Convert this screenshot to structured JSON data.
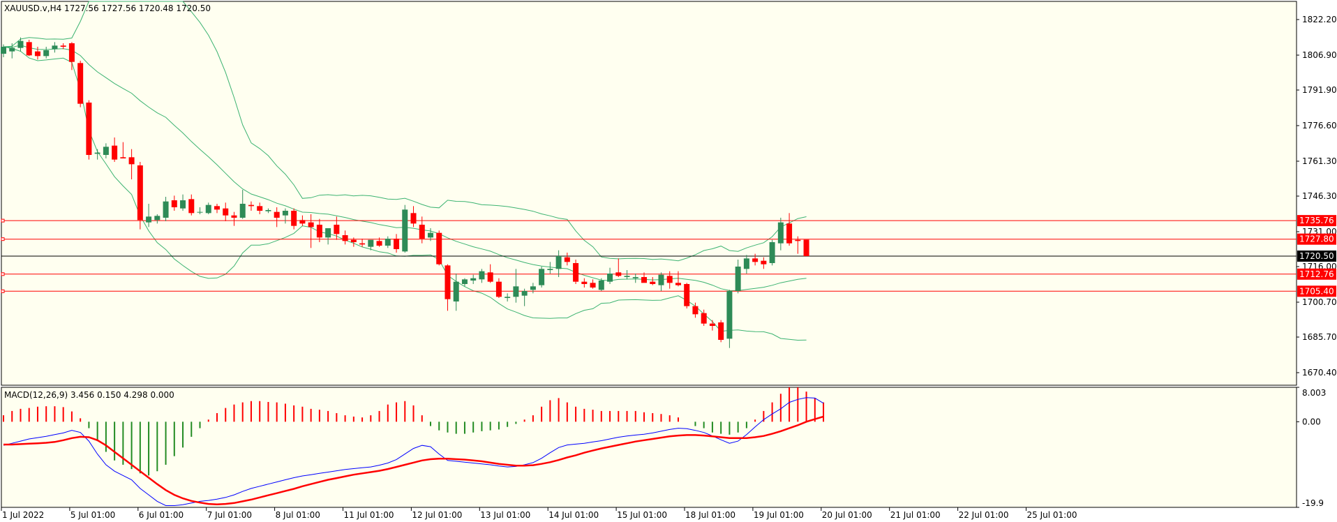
{
  "header": {
    "symbol_line": "XAUUSD.v,H4  1727.56 1727.56 1720.48 1720.50",
    "macd_line": "MACD(12,26,9) 3.456 0.150 4.298 0.000"
  },
  "colors": {
    "background": "#fffff0",
    "frame": "#000000",
    "bull_candle": "#2e8b57",
    "bear_candle": "#ff0000",
    "bands": "#3cb371",
    "level_line": "#ff0000",
    "current_price": "#000000",
    "macd_hist_up": "#ff0000",
    "macd_hist_down": "#228b22",
    "macd_main": "#0000ff",
    "macd_signal": "#ff0000"
  },
  "price_axis": {
    "ticks": [
      "1822.20",
      "1806.90",
      "1791.90",
      "1776.60",
      "1761.30",
      "1746.30",
      "1731.00",
      "1716.00",
      "1700.70",
      "1685.70",
      "1670.40"
    ]
  },
  "macd_axis": {
    "ticks": [
      "8.003",
      "0.00",
      "-19.9"
    ]
  },
  "time_axis": {
    "labels": [
      "1 Jul 2022",
      "5 Jul 01:00",
      "6 Jul 01:00",
      "7 Jul 01:00",
      "8 Jul 01:00",
      "11 Jul 01:00",
      "12 Jul 01:00",
      "13 Jul 01:00",
      "14 Jul 01:00",
      "15 Jul 01:00",
      "18 Jul 01:00",
      "19 Jul 01:00",
      "20 Jul 01:00",
      "21 Jul 01:00",
      "22 Jul 01:00",
      "25 Jul 01:00"
    ]
  },
  "level_tags": {
    "l1735": "1735.76",
    "l1727": "1727.80",
    "current": "1720.50",
    "l1712": "1712.76",
    "l1705": "1705.40"
  },
  "chart_data": [
    {
      "type": "candlestick",
      "symbol": "XAUUSD.v",
      "timeframe": "H4",
      "ylim": [
        1665,
        1830
      ],
      "last_ohlc": [
        1727.56,
        1727.56,
        1720.48,
        1720.5
      ],
      "horizontal_levels": [
        1735.76,
        1727.8,
        1712.76,
        1705.4
      ],
      "current_price": 1720.5,
      "candles": [
        {
          "o": 1807.5,
          "h": 1811.5,
          "l": 1806.0,
          "c": 1810.5
        },
        {
          "o": 1808.5,
          "h": 1812.0,
          "l": 1805.5,
          "c": 1810.0
        },
        {
          "o": 1810.0,
          "h": 1814.5,
          "l": 1808.5,
          "c": 1813.0
        },
        {
          "o": 1812.5,
          "h": 1813.5,
          "l": 1806.5,
          "c": 1806.8
        },
        {
          "o": 1808.5,
          "h": 1810.5,
          "l": 1805.0,
          "c": 1806.5
        },
        {
          "o": 1806.5,
          "h": 1810.5,
          "l": 1805.5,
          "c": 1809.0
        },
        {
          "o": 1809.5,
          "h": 1812.5,
          "l": 1808.0,
          "c": 1811.0
        },
        {
          "o": 1811.0,
          "h": 1812.0,
          "l": 1809.5,
          "c": 1810.5
        },
        {
          "o": 1812.0,
          "h": 1812.5,
          "l": 1800.5,
          "c": 1804.0
        },
        {
          "o": 1803.5,
          "h": 1804.5,
          "l": 1784.5,
          "c": 1786.0
        },
        {
          "o": 1786.5,
          "h": 1787.5,
          "l": 1762.0,
          "c": 1764.0
        },
        {
          "o": 1764.5,
          "h": 1766.5,
          "l": 1762.0,
          "c": 1765.0
        },
        {
          "o": 1764.0,
          "h": 1769.0,
          "l": 1762.5,
          "c": 1767.5
        },
        {
          "o": 1768.0,
          "h": 1771.5,
          "l": 1761.0,
          "c": 1762.0
        },
        {
          "o": 1763.0,
          "h": 1769.5,
          "l": 1762.5,
          "c": 1762.5
        },
        {
          "o": 1763.0,
          "h": 1766.5,
          "l": 1753.5,
          "c": 1760.0
        },
        {
          "o": 1759.5,
          "h": 1761.0,
          "l": 1732.0,
          "c": 1736.0
        },
        {
          "o": 1735.0,
          "h": 1743.0,
          "l": 1733.0,
          "c": 1737.5
        },
        {
          "o": 1736.0,
          "h": 1738.5,
          "l": 1734.5,
          "c": 1737.8
        },
        {
          "o": 1737.0,
          "h": 1746.0,
          "l": 1735.5,
          "c": 1744.0
        },
        {
          "o": 1744.5,
          "h": 1746.5,
          "l": 1740.0,
          "c": 1741.5
        },
        {
          "o": 1741.0,
          "h": 1747.0,
          "l": 1740.0,
          "c": 1744.5
        },
        {
          "o": 1745.0,
          "h": 1747.0,
          "l": 1738.0,
          "c": 1739.0
        },
        {
          "o": 1739.5,
          "h": 1741.5,
          "l": 1738.5,
          "c": 1739.5
        },
        {
          "o": 1739.0,
          "h": 1743.5,
          "l": 1738.5,
          "c": 1742.5
        },
        {
          "o": 1742.0,
          "h": 1743.0,
          "l": 1739.0,
          "c": 1740.5
        },
        {
          "o": 1741.0,
          "h": 1743.5,
          "l": 1735.5,
          "c": 1738.0
        },
        {
          "o": 1738.0,
          "h": 1739.5,
          "l": 1733.5,
          "c": 1737.0
        },
        {
          "o": 1737.0,
          "h": 1749.0,
          "l": 1736.5,
          "c": 1743.0
        },
        {
          "o": 1742.5,
          "h": 1744.0,
          "l": 1740.0,
          "c": 1742.0
        },
        {
          "o": 1742.0,
          "h": 1743.5,
          "l": 1738.5,
          "c": 1740.0
        },
        {
          "o": 1739.8,
          "h": 1741.0,
          "l": 1739.0,
          "c": 1740.3
        },
        {
          "o": 1739.5,
          "h": 1741.5,
          "l": 1733.0,
          "c": 1737.0
        },
        {
          "o": 1738.0,
          "h": 1741.0,
          "l": 1734.5,
          "c": 1740.0
        },
        {
          "o": 1740.0,
          "h": 1741.0,
          "l": 1732.0,
          "c": 1733.5
        },
        {
          "o": 1736.0,
          "h": 1738.0,
          "l": 1733.5,
          "c": 1734.5
        },
        {
          "o": 1735.0,
          "h": 1738.5,
          "l": 1724.0,
          "c": 1733.0
        },
        {
          "o": 1734.0,
          "h": 1736.5,
          "l": 1726.5,
          "c": 1728.5
        },
        {
          "o": 1728.5,
          "h": 1731.0,
          "l": 1725.5,
          "c": 1732.5
        },
        {
          "o": 1734.0,
          "h": 1737.5,
          "l": 1727.5,
          "c": 1730.0
        },
        {
          "o": 1729.5,
          "h": 1731.5,
          "l": 1725.5,
          "c": 1727.0
        },
        {
          "o": 1727.5,
          "h": 1728.5,
          "l": 1724.5,
          "c": 1726.5
        },
        {
          "o": 1726.0,
          "h": 1728.0,
          "l": 1724.5,
          "c": 1725.5
        },
        {
          "o": 1724.5,
          "h": 1726.5,
          "l": 1723.0,
          "c": 1727.5
        },
        {
          "o": 1727.0,
          "h": 1728.5,
          "l": 1724.5,
          "c": 1725.0
        },
        {
          "o": 1725.0,
          "h": 1729.0,
          "l": 1724.0,
          "c": 1728.0
        },
        {
          "o": 1728.0,
          "h": 1730.0,
          "l": 1722.0,
          "c": 1723.5
        },
        {
          "o": 1722.5,
          "h": 1742.5,
          "l": 1722.0,
          "c": 1740.5
        },
        {
          "o": 1739.0,
          "h": 1742.0,
          "l": 1733.0,
          "c": 1734.5
        },
        {
          "o": 1734.0,
          "h": 1737.5,
          "l": 1726.0,
          "c": 1728.0
        },
        {
          "o": 1728.5,
          "h": 1732.5,
          "l": 1727.0,
          "c": 1730.5
        },
        {
          "o": 1730.5,
          "h": 1731.5,
          "l": 1716.5,
          "c": 1717.0
        },
        {
          "o": 1716.5,
          "h": 1717.0,
          "l": 1697.0,
          "c": 1702.0
        },
        {
          "o": 1701.0,
          "h": 1713.0,
          "l": 1697.0,
          "c": 1709.5
        },
        {
          "o": 1708.5,
          "h": 1711.0,
          "l": 1707.5,
          "c": 1710.5
        },
        {
          "o": 1710.0,
          "h": 1712.5,
          "l": 1708.5,
          "c": 1711.0
        },
        {
          "o": 1710.5,
          "h": 1715.0,
          "l": 1709.0,
          "c": 1714.0
        },
        {
          "o": 1713.5,
          "h": 1717.0,
          "l": 1709.0,
          "c": 1709.5
        },
        {
          "o": 1709.5,
          "h": 1711.0,
          "l": 1702.5,
          "c": 1703.0
        },
        {
          "o": 1702.5,
          "h": 1704.5,
          "l": 1701.0,
          "c": 1703.0
        },
        {
          "o": 1703.0,
          "h": 1715.0,
          "l": 1700.5,
          "c": 1707.5
        },
        {
          "o": 1703.5,
          "h": 1706.5,
          "l": 1699.0,
          "c": 1705.5
        },
        {
          "o": 1706.0,
          "h": 1709.0,
          "l": 1704.5,
          "c": 1707.5
        },
        {
          "o": 1708.0,
          "h": 1716.0,
          "l": 1707.0,
          "c": 1715.0
        },
        {
          "o": 1714.5,
          "h": 1718.0,
          "l": 1713.0,
          "c": 1715.0
        },
        {
          "o": 1715.0,
          "h": 1723.0,
          "l": 1711.5,
          "c": 1720.5
        },
        {
          "o": 1720.0,
          "h": 1722.0,
          "l": 1716.5,
          "c": 1718.0
        },
        {
          "o": 1717.5,
          "h": 1719.0,
          "l": 1708.5,
          "c": 1709.5
        },
        {
          "o": 1709.5,
          "h": 1711.0,
          "l": 1707.0,
          "c": 1708.5
        },
        {
          "o": 1709.0,
          "h": 1710.5,
          "l": 1706.5,
          "c": 1707.0
        },
        {
          "o": 1706.0,
          "h": 1711.0,
          "l": 1705.5,
          "c": 1710.0
        },
        {
          "o": 1709.5,
          "h": 1715.5,
          "l": 1708.5,
          "c": 1713.0
        },
        {
          "o": 1713.5,
          "h": 1719.5,
          "l": 1711.5,
          "c": 1712.0
        },
        {
          "o": 1711.5,
          "h": 1714.5,
          "l": 1710.5,
          "c": 1712.0
        },
        {
          "o": 1711.0,
          "h": 1713.0,
          "l": 1709.0,
          "c": 1711.5
        },
        {
          "o": 1711.5,
          "h": 1713.5,
          "l": 1710.0,
          "c": 1709.0
        },
        {
          "o": 1709.5,
          "h": 1711.5,
          "l": 1708.0,
          "c": 1708.5
        },
        {
          "o": 1708.0,
          "h": 1713.5,
          "l": 1705.5,
          "c": 1712.5
        },
        {
          "o": 1712.0,
          "h": 1714.0,
          "l": 1706.5,
          "c": 1709.0
        },
        {
          "o": 1709.0,
          "h": 1714.0,
          "l": 1707.5,
          "c": 1708.0
        },
        {
          "o": 1708.5,
          "h": 1709.0,
          "l": 1698.0,
          "c": 1699.0
        },
        {
          "o": 1699.0,
          "h": 1700.5,
          "l": 1694.0,
          "c": 1695.5
        },
        {
          "o": 1696.0,
          "h": 1697.5,
          "l": 1690.5,
          "c": 1691.5
        },
        {
          "o": 1691.5,
          "h": 1693.0,
          "l": 1688.5,
          "c": 1690.5
        },
        {
          "o": 1692.0,
          "h": 1693.0,
          "l": 1683.5,
          "c": 1684.5
        },
        {
          "o": 1685.0,
          "h": 1706.0,
          "l": 1681.0,
          "c": 1705.5
        },
        {
          "o": 1705.5,
          "h": 1719.0,
          "l": 1704.5,
          "c": 1716.0
        },
        {
          "o": 1715.0,
          "h": 1721.0,
          "l": 1713.0,
          "c": 1719.5
        },
        {
          "o": 1719.5,
          "h": 1721.5,
          "l": 1716.5,
          "c": 1718.0
        },
        {
          "o": 1718.5,
          "h": 1720.0,
          "l": 1715.0,
          "c": 1717.0
        },
        {
          "o": 1717.5,
          "h": 1727.5,
          "l": 1716.5,
          "c": 1726.5
        },
        {
          "o": 1726.0,
          "h": 1737.0,
          "l": 1723.0,
          "c": 1735.0
        },
        {
          "o": 1734.5,
          "h": 1739.0,
          "l": 1725.0,
          "c": 1726.0
        },
        {
          "o": 1727.5,
          "h": 1729.0,
          "l": 1721.5,
          "c": 1727.0
        },
        {
          "o": 1727.56,
          "h": 1727.56,
          "l": 1720.48,
          "c": 1720.5
        }
      ]
    },
    {
      "type": "macd",
      "title": "MACD(12,26,9) 3.456 0.150 4.298 0.000",
      "ylim": [
        -19.9,
        8.003
      ],
      "histogram": [
        1.5,
        2.5,
        3.0,
        3.2,
        3.5,
        3.6,
        3.6,
        3.4,
        2.4,
        0.8,
        -1.5,
        -4.5,
        -7.0,
        -9.0,
        -10.0,
        -11.0,
        -12.0,
        -12.5,
        -11.5,
        -10.0,
        -8.0,
        -6.0,
        -3.5,
        -1.5,
        0.5,
        2.0,
        3.2,
        4.0,
        4.5,
        4.8,
        4.8,
        4.6,
        4.5,
        4.2,
        3.8,
        3.5,
        3.0,
        2.8,
        2.5,
        2.0,
        1.5,
        1.2,
        1.0,
        1.5,
        2.5,
        4.0,
        4.5,
        4.8,
        3.8,
        1.5,
        -1.0,
        -2.0,
        -2.5,
        -2.8,
        -2.8,
        -2.5,
        -2.2,
        -2.0,
        -1.8,
        -1.2,
        -0.5,
        0.5,
        1.5,
        3.5,
        5.0,
        5.5,
        4.5,
        3.5,
        3.0,
        2.8,
        2.5,
        2.5,
        2.5,
        2.5,
        2.5,
        2.2,
        2.0,
        1.8,
        1.5,
        1.0,
        0.0,
        -1.0,
        -1.5,
        -2.5,
        -2.8,
        -3.0,
        -2.5,
        -1.5,
        0.5,
        2.5,
        4.5,
        6.5,
        8.0,
        8.0,
        7.0,
        5.5,
        4.5
      ],
      "main_line": [
        -5.5,
        -5.0,
        -4.5,
        -4.0,
        -3.7,
        -3.4,
        -3.0,
        -2.6,
        -2.0,
        -2.5,
        -4.5,
        -7.5,
        -10.0,
        -11.5,
        -12.5,
        -13.5,
        -15.5,
        -17.0,
        -18.5,
        -19.5,
        -19.5,
        -19.3,
        -18.9,
        -18.5,
        -18.3,
        -18.0,
        -17.6,
        -17.0,
        -16.2,
        -15.5,
        -15.0,
        -14.5,
        -14.0,
        -13.5,
        -13.0,
        -12.6,
        -12.3,
        -12.0,
        -11.7,
        -11.4,
        -11.1,
        -10.9,
        -10.7,
        -10.5,
        -10.1,
        -9.6,
        -8.8,
        -7.5,
        -6.2,
        -5.5,
        -5.8,
        -7.5,
        -9.0,
        -9.2,
        -9.4,
        -9.6,
        -9.8,
        -10.0,
        -10.3,
        -10.5,
        -10.4,
        -10.0,
        -9.5,
        -8.5,
        -7.2,
        -6.0,
        -5.4,
        -5.2,
        -5.0,
        -4.7,
        -4.4,
        -4.0,
        -3.6,
        -3.3,
        -3.1,
        -2.9,
        -2.6,
        -2.2,
        -1.8,
        -1.5,
        -1.6,
        -2.0,
        -2.5,
        -3.3,
        -4.2,
        -5.0,
        -4.5,
        -3.0,
        -1.2,
        0.5,
        1.8,
        3.0,
        4.5,
        5.2,
        5.6,
        5.5,
        4.3
      ],
      "signal_line": [
        -5.3,
        -5.3,
        -5.2,
        -5.1,
        -5.0,
        -4.9,
        -4.7,
        -4.3,
        -3.8,
        -3.5,
        -3.6,
        -4.3,
        -5.5,
        -7.0,
        -8.5,
        -10.0,
        -11.5,
        -13.0,
        -14.5,
        -15.9,
        -17.0,
        -17.8,
        -18.4,
        -18.8,
        -19.1,
        -19.2,
        -19.1,
        -18.9,
        -18.5,
        -18.1,
        -17.6,
        -17.1,
        -16.6,
        -16.1,
        -15.6,
        -15.0,
        -14.5,
        -14.0,
        -13.5,
        -13.1,
        -12.7,
        -12.3,
        -12.0,
        -11.7,
        -11.4,
        -11.0,
        -10.5,
        -10.0,
        -9.5,
        -9.0,
        -8.7,
        -8.6,
        -8.6,
        -8.7,
        -8.8,
        -9.0,
        -9.2,
        -9.5,
        -9.8,
        -10.0,
        -10.2,
        -10.2,
        -10.1,
        -9.8,
        -9.4,
        -8.9,
        -8.3,
        -7.8,
        -7.2,
        -6.7,
        -6.2,
        -5.8,
        -5.4,
        -5.0,
        -4.6,
        -4.3,
        -4.0,
        -3.7,
        -3.4,
        -3.2,
        -3.1,
        -3.1,
        -3.2,
        -3.4,
        -3.6,
        -3.8,
        -3.8,
        -3.8,
        -3.6,
        -3.3,
        -2.8,
        -2.2,
        -1.5,
        -0.8,
        0.0,
        0.6,
        1.2
      ]
    }
  ]
}
